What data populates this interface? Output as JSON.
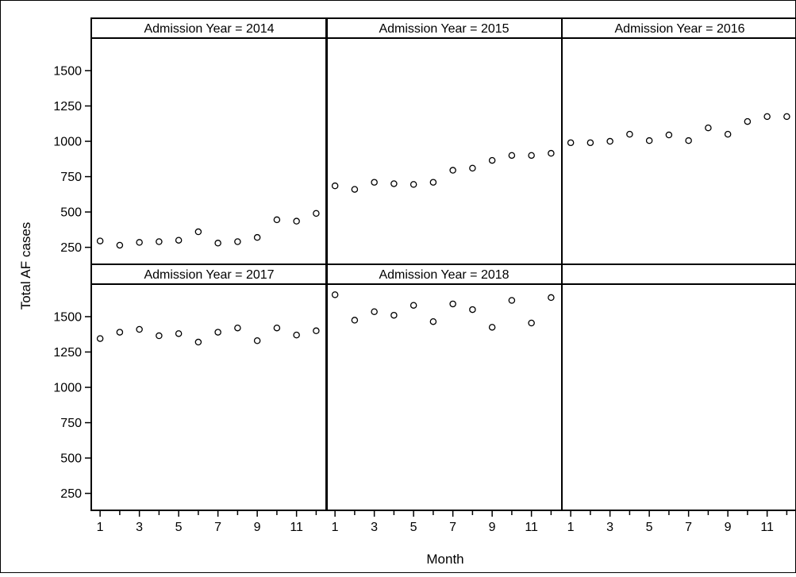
{
  "chart_data": {
    "type": "scatter",
    "xlabel": "Month",
    "ylabel": "Total AF cases",
    "x_ticks": [
      1,
      3,
      5,
      7,
      9,
      11
    ],
    "y_ticks": [
      250,
      500,
      750,
      1000,
      1250,
      1500
    ],
    "xlim": [
      0.55,
      12.55
    ],
    "ylim": [
      130,
      1730
    ],
    "marker": "open-circle",
    "panels": [
      {
        "label": "Admission Year = 2014",
        "x": [
          1,
          2,
          3,
          4,
          5,
          6,
          7,
          8,
          9,
          10,
          11,
          12
        ],
        "y": [
          295,
          265,
          285,
          290,
          300,
          360,
          280,
          290,
          320,
          445,
          435,
          490
        ]
      },
      {
        "label": "Admission Year = 2015",
        "x": [
          1,
          2,
          3,
          4,
          5,
          6,
          7,
          8,
          9,
          10,
          11,
          12
        ],
        "y": [
          685,
          660,
          710,
          700,
          695,
          710,
          795,
          810,
          865,
          900,
          900,
          915
        ]
      },
      {
        "label": "Admission Year = 2016",
        "x": [
          1,
          2,
          3,
          4,
          5,
          6,
          7,
          8,
          9,
          10,
          11,
          12
        ],
        "y": [
          990,
          990,
          1000,
          1050,
          1005,
          1045,
          1005,
          1095,
          1050,
          1140,
          1175,
          1175
        ]
      },
      {
        "label": "Admission Year = 2017",
        "x": [
          1,
          2,
          3,
          4,
          5,
          6,
          7,
          8,
          9,
          10,
          11,
          12
        ],
        "y": [
          1345,
          1390,
          1410,
          1365,
          1380,
          1320,
          1390,
          1420,
          1330,
          1420,
          1370,
          1400
        ]
      },
      {
        "label": "Admission Year = 2018",
        "x": [
          1,
          2,
          3,
          4,
          5,
          6,
          7,
          8,
          9,
          10,
          11,
          12
        ],
        "y": [
          1655,
          1475,
          1535,
          1510,
          1580,
          1465,
          1590,
          1550,
          1425,
          1615,
          1455,
          1635
        ]
      }
    ]
  }
}
